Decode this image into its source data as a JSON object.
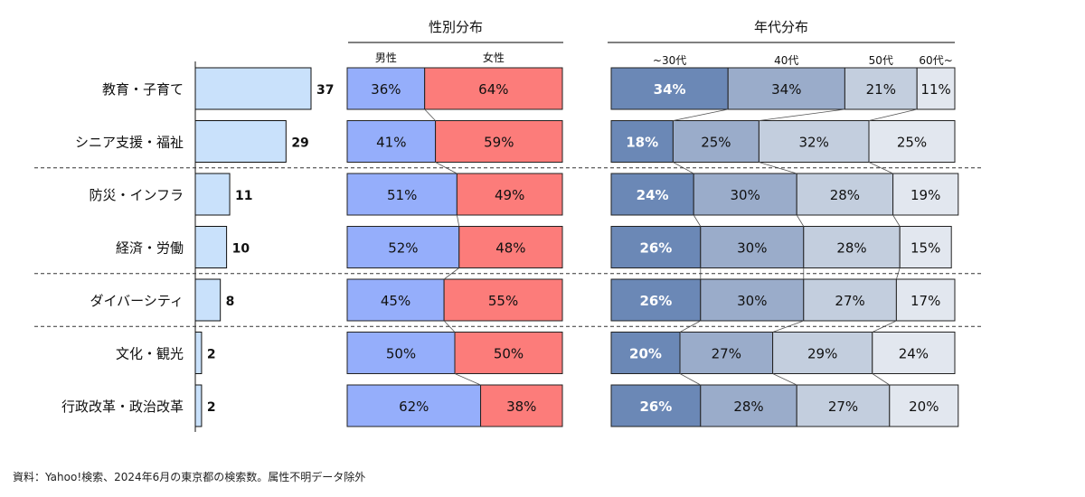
{
  "chart_data": {
    "type": "bar",
    "categories": [
      "教育・子育て",
      "シニア支援・福祉",
      "防災・インフラ",
      "経済・労働",
      "ダイバーシティ",
      "文化・観光",
      "行政改革・政治改革"
    ],
    "counts": [
      37,
      29,
      11,
      10,
      8,
      2,
      2
    ],
    "gender": {
      "title": "性別分布",
      "series": [
        {
          "name": "男性",
          "color": "#95aefb",
          "values": [
            36,
            41,
            51,
            52,
            45,
            50,
            62
          ]
        },
        {
          "name": "女性",
          "color": "#fc7c7a",
          "values": [
            64,
            59,
            49,
            48,
            55,
            50,
            38
          ]
        }
      ]
    },
    "age": {
      "title": "年代分布",
      "series": [
        {
          "name": "~30代",
          "color": "#6b88b6",
          "values": [
            34,
            18,
            24,
            26,
            26,
            20,
            26
          ]
        },
        {
          "name": "40代",
          "color": "#9aacca",
          "values": [
            34,
            25,
            30,
            30,
            30,
            27,
            28
          ]
        },
        {
          "name": "50代",
          "color": "#c3cede",
          "values": [
            21,
            32,
            28,
            28,
            27,
            29,
            27
          ]
        },
        {
          "name": "60代~",
          "color": "#e2e7ef",
          "values": [
            11,
            25,
            19,
            15,
            17,
            24,
            20
          ]
        }
      ]
    },
    "count_bar_color": "#c9e1fb",
    "group_dividers_after": [
      1,
      3,
      4
    ]
  },
  "footnote": "資料：Yahoo!検索、2024年6月の東京都の検索数。属性不明データ除外"
}
